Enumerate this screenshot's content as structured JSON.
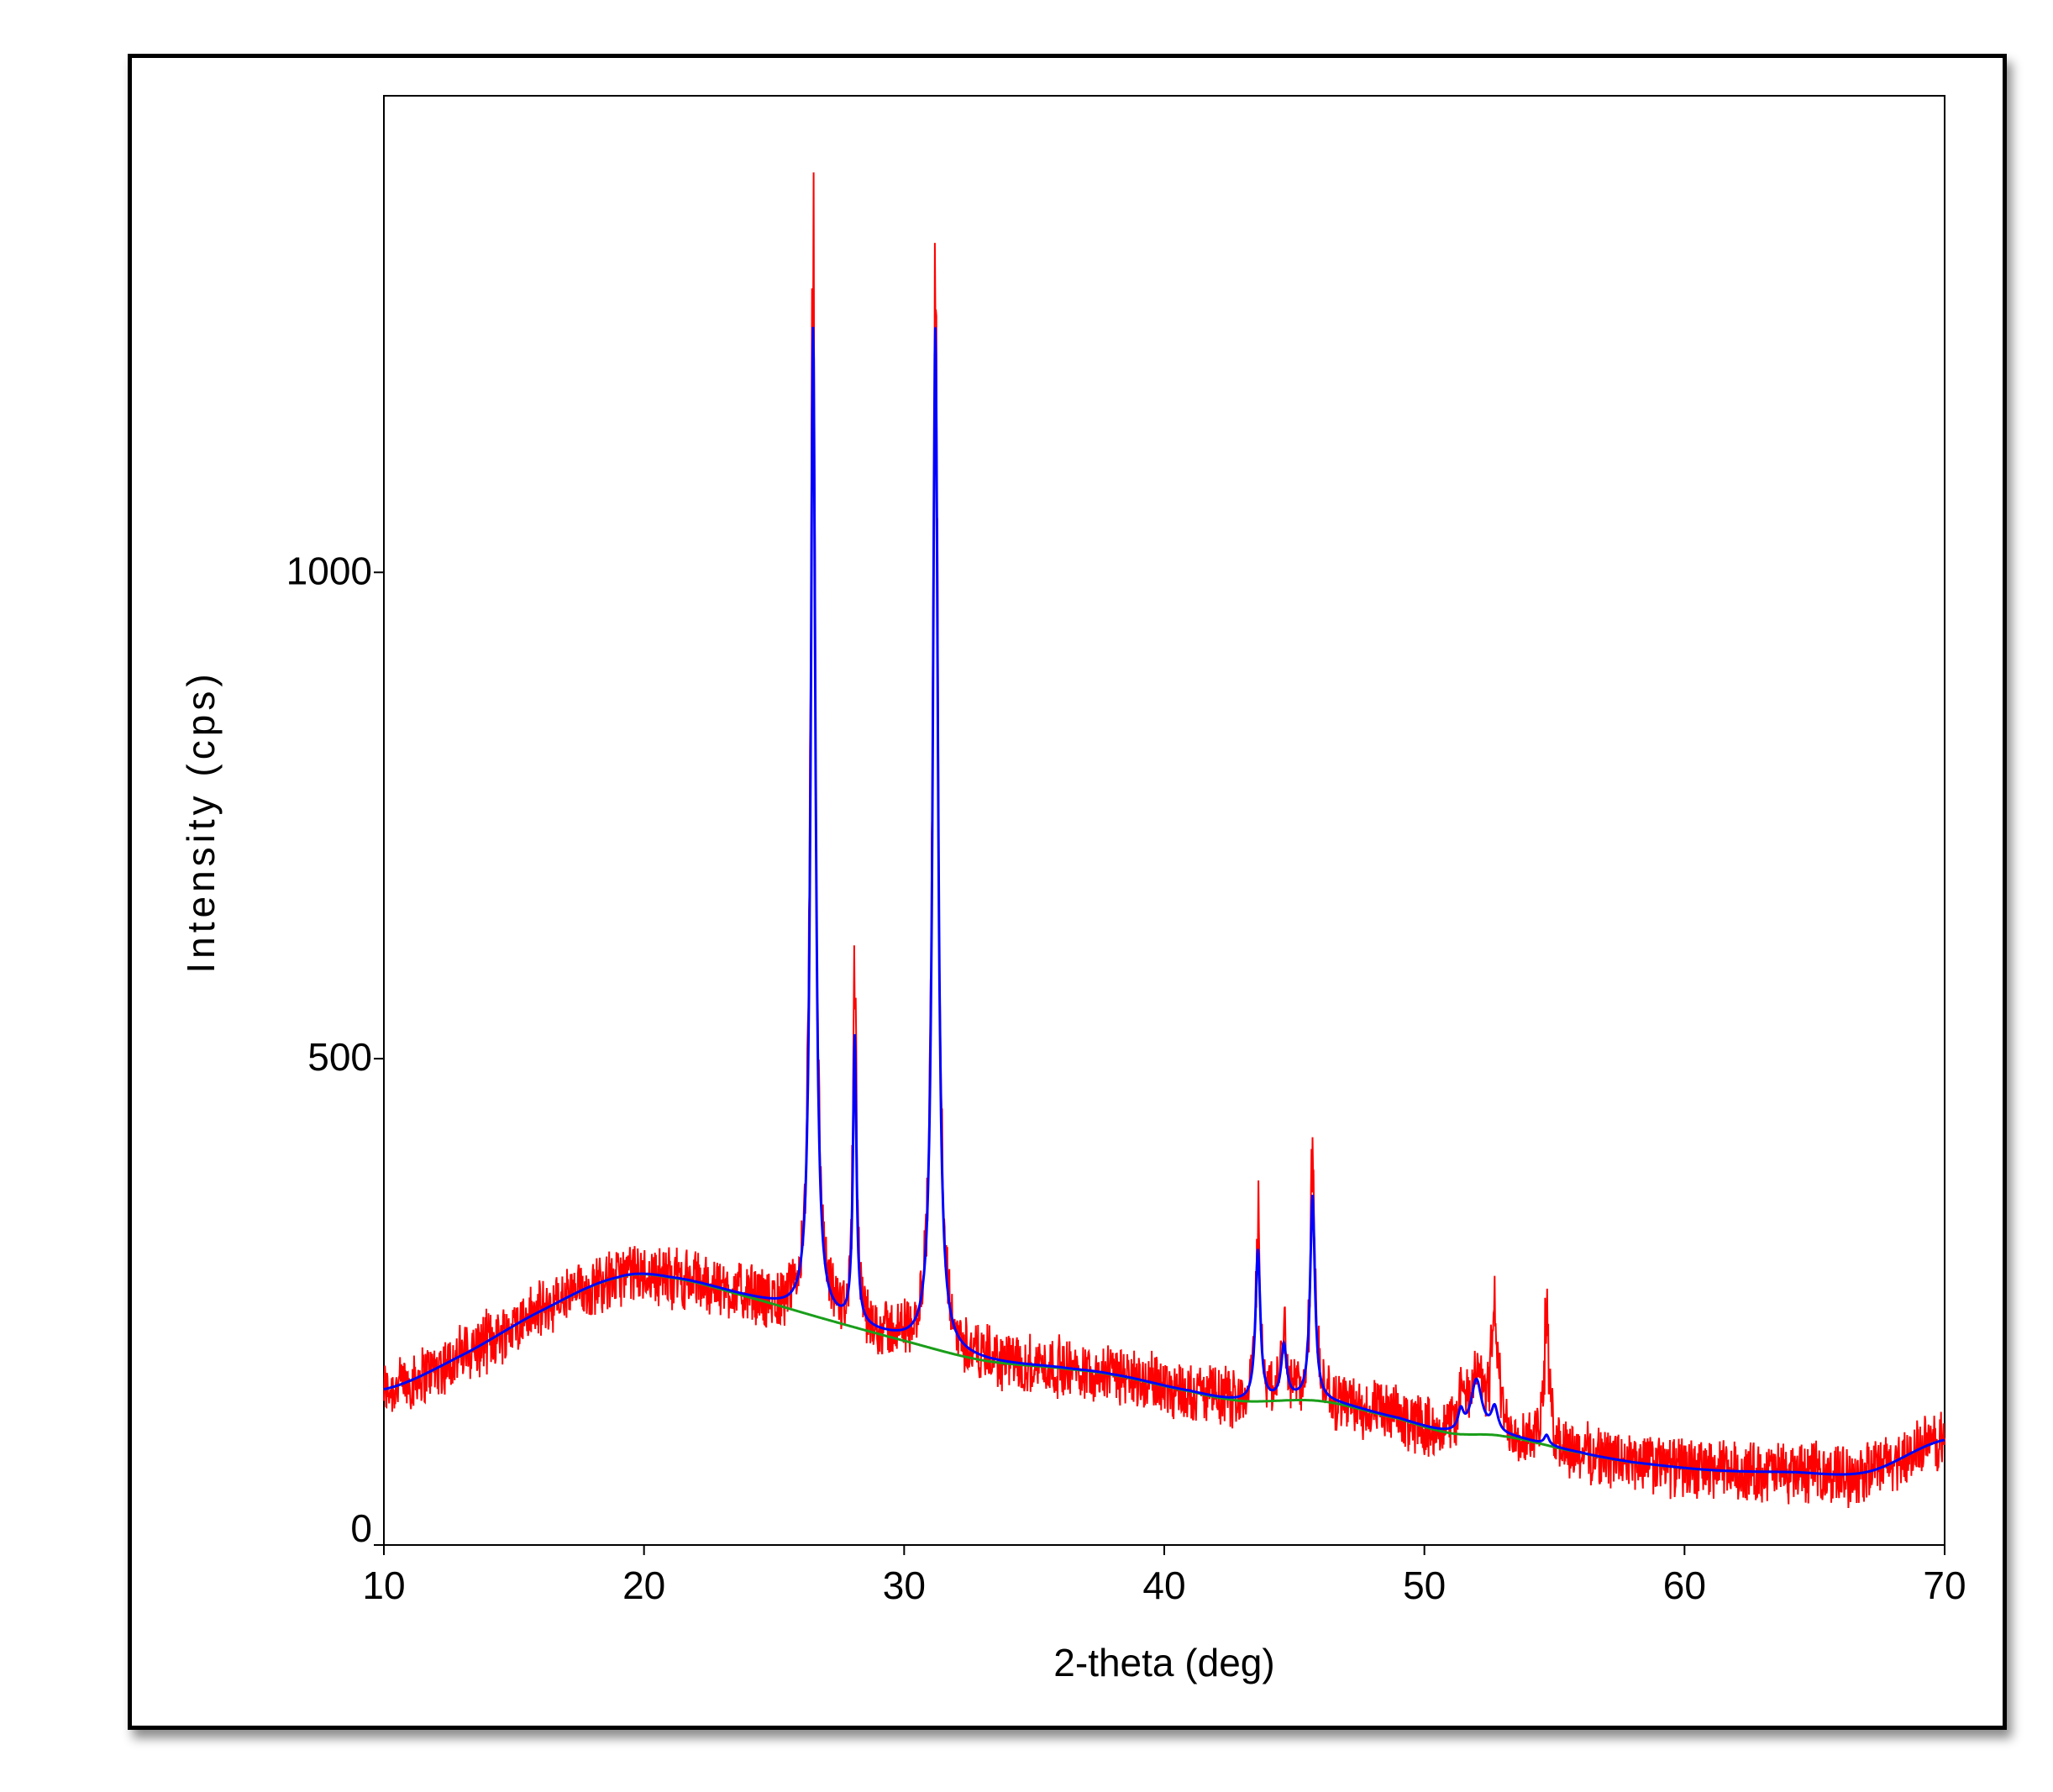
{
  "chart_data": {
    "type": "line",
    "title": "",
    "xlabel": "2-theta (deg)",
    "ylabel": "Intensity (cps)",
    "xlim": [
      10,
      70
    ],
    "ylim": [
      0,
      1490
    ],
    "x_ticks": [
      10,
      20,
      30,
      40,
      50,
      60,
      70
    ],
    "y_ticks": [
      0,
      500,
      1000
    ],
    "grid": false,
    "legend": "none",
    "colors": {
      "observed": "#ff0000",
      "fit": "#0000ff",
      "background": "#1a9e1a"
    },
    "background_points": [
      [
        10,
        160
      ],
      [
        13,
        195
      ],
      [
        16,
        240
      ],
      [
        19,
        275
      ],
      [
        21,
        275
      ],
      [
        24,
        255
      ],
      [
        27,
        232
      ],
      [
        30,
        210
      ],
      [
        33,
        190
      ],
      [
        36,
        182
      ],
      [
        38,
        175
      ],
      [
        41,
        158
      ],
      [
        43,
        148
      ],
      [
        46,
        148
      ],
      [
        49,
        130
      ],
      [
        51,
        115
      ],
      [
        53,
        112
      ],
      [
        56,
        95
      ],
      [
        58,
        85
      ],
      [
        61,
        77
      ],
      [
        64,
        75
      ],
      [
        67,
        75
      ],
      [
        70,
        108
      ]
    ],
    "peaks": [
      {
        "center": 26.5,
        "fit_height": 1015,
        "obs_height": 1100,
        "width": 0.22
      },
      {
        "center": 28.1,
        "fit_height": 295,
        "obs_height": 345,
        "width": 0.16
      },
      {
        "center": 31.2,
        "fit_height": 1050,
        "obs_height": 1170,
        "width": 0.24
      },
      {
        "center": 43.6,
        "fit_height": 155,
        "obs_height": 180,
        "width": 0.22
      },
      {
        "center": 44.6,
        "fit_height": 55,
        "obs_height": 75,
        "width": 0.25
      },
      {
        "center": 45.7,
        "fit_height": 210,
        "obs_height": 235,
        "width": 0.22
      },
      {
        "center": 51.4,
        "fit_height": 20,
        "obs_height": 40,
        "width": 0.25
      },
      {
        "center": 52.0,
        "fit_height": 55,
        "obs_height": 70,
        "width": 0.5
      },
      {
        "center": 52.7,
        "fit_height": 25,
        "obs_height": 120,
        "width": 0.3
      },
      {
        "center": 54.7,
        "fit_height": 10,
        "obs_height": 135,
        "width": 0.22
      }
    ],
    "noise_amplitude": 22
  }
}
